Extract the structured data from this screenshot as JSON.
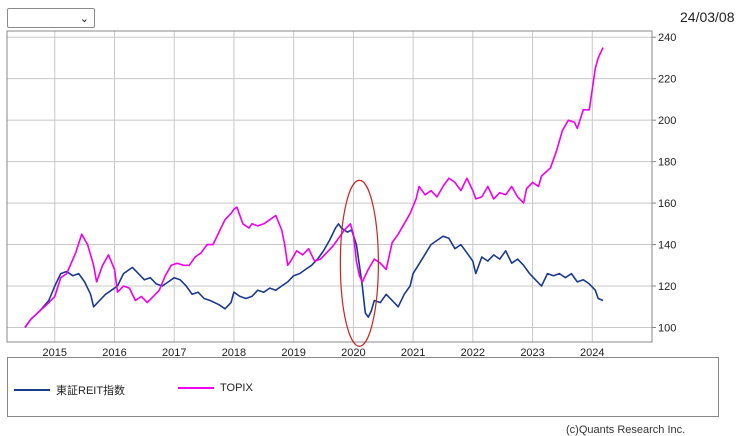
{
  "header": {
    "range_select_value": "",
    "date": "24/03/08"
  },
  "chart_data": {
    "type": "line",
    "x_ticks": [
      "2015",
      "2016",
      "2017",
      "2018",
      "2019",
      "2020",
      "2021",
      "2022",
      "2023",
      "2024"
    ],
    "y_ticks": [
      100,
      120,
      140,
      160,
      180,
      200,
      220,
      240
    ],
    "xlim": [
      2014.2,
      2025.0
    ],
    "ylim": [
      93,
      243
    ],
    "grid": true,
    "legend_position": "bottom",
    "annotation": "red ellipse around 2020 crash",
    "series": [
      {
        "name": "東証REIT指数",
        "color": "#1a3a8c",
        "points": [
          [
            2014.5,
            100
          ],
          [
            2014.6,
            104
          ],
          [
            2014.75,
            108
          ],
          [
            2014.9,
            113
          ],
          [
            2015.0,
            120
          ],
          [
            2015.1,
            126
          ],
          [
            2015.2,
            127
          ],
          [
            2015.3,
            125
          ],
          [
            2015.4,
            126
          ],
          [
            2015.5,
            122
          ],
          [
            2015.6,
            116
          ],
          [
            2015.65,
            110
          ],
          [
            2015.75,
            113
          ],
          [
            2015.85,
            116
          ],
          [
            2015.95,
            118
          ],
          [
            2016.05,
            120
          ],
          [
            2016.15,
            126
          ],
          [
            2016.3,
            129
          ],
          [
            2016.4,
            126
          ],
          [
            2016.5,
            123
          ],
          [
            2016.6,
            124
          ],
          [
            2016.7,
            121
          ],
          [
            2016.8,
            120
          ],
          [
            2016.9,
            122
          ],
          [
            2017.0,
            124
          ],
          [
            2017.1,
            123
          ],
          [
            2017.2,
            120
          ],
          [
            2017.3,
            116
          ],
          [
            2017.4,
            117
          ],
          [
            2017.5,
            114
          ],
          [
            2017.6,
            113
          ],
          [
            2017.75,
            111
          ],
          [
            2017.85,
            109
          ],
          [
            2017.95,
            112
          ],
          [
            2018.0,
            117
          ],
          [
            2018.1,
            115
          ],
          [
            2018.2,
            114
          ],
          [
            2018.3,
            115
          ],
          [
            2018.4,
            118
          ],
          [
            2018.5,
            117
          ],
          [
            2018.6,
            119
          ],
          [
            2018.7,
            118
          ],
          [
            2018.8,
            120
          ],
          [
            2018.9,
            122
          ],
          [
            2019.0,
            125
          ],
          [
            2019.1,
            126
          ],
          [
            2019.2,
            128
          ],
          [
            2019.3,
            130
          ],
          [
            2019.4,
            133
          ],
          [
            2019.5,
            137
          ],
          [
            2019.6,
            142
          ],
          [
            2019.7,
            148
          ],
          [
            2019.75,
            150
          ],
          [
            2019.8,
            148
          ],
          [
            2019.9,
            146
          ],
          [
            2019.97,
            147
          ],
          [
            2020.05,
            140
          ],
          [
            2020.1,
            130
          ],
          [
            2020.15,
            120
          ],
          [
            2020.2,
            107
          ],
          [
            2020.25,
            105
          ],
          [
            2020.3,
            108
          ],
          [
            2020.35,
            113
          ],
          [
            2020.45,
            112
          ],
          [
            2020.55,
            116
          ],
          [
            2020.65,
            113
          ],
          [
            2020.75,
            110
          ],
          [
            2020.85,
            116
          ],
          [
            2020.95,
            120
          ],
          [
            2021.0,
            126
          ],
          [
            2021.15,
            133
          ],
          [
            2021.3,
            140
          ],
          [
            2021.4,
            142
          ],
          [
            2021.5,
            144
          ],
          [
            2021.6,
            143
          ],
          [
            2021.7,
            138
          ],
          [
            2021.8,
            140
          ],
          [
            2021.9,
            136
          ],
          [
            2022.0,
            132
          ],
          [
            2022.05,
            126
          ],
          [
            2022.15,
            134
          ],
          [
            2022.25,
            132
          ],
          [
            2022.35,
            135
          ],
          [
            2022.45,
            133
          ],
          [
            2022.55,
            137
          ],
          [
            2022.65,
            131
          ],
          [
            2022.75,
            133
          ],
          [
            2022.85,
            130
          ],
          [
            2022.95,
            126
          ],
          [
            2023.05,
            123
          ],
          [
            2023.15,
            120
          ],
          [
            2023.25,
            126
          ],
          [
            2023.35,
            125
          ],
          [
            2023.45,
            126
          ],
          [
            2023.55,
            124
          ],
          [
            2023.65,
            126
          ],
          [
            2023.75,
            122
          ],
          [
            2023.85,
            123
          ],
          [
            2023.95,
            121
          ],
          [
            2024.05,
            118
          ],
          [
            2024.1,
            114
          ],
          [
            2024.18,
            113
          ]
        ]
      },
      {
        "name": "TOPIX",
        "color": "#ee00ee",
        "points": [
          [
            2014.5,
            100
          ],
          [
            2014.6,
            104
          ],
          [
            2014.75,
            108
          ],
          [
            2014.9,
            112
          ],
          [
            2015.0,
            115
          ],
          [
            2015.1,
            124
          ],
          [
            2015.2,
            126
          ],
          [
            2015.35,
            136
          ],
          [
            2015.45,
            145
          ],
          [
            2015.55,
            140
          ],
          [
            2015.65,
            130
          ],
          [
            2015.7,
            122
          ],
          [
            2015.8,
            130
          ],
          [
            2015.9,
            135
          ],
          [
            2016.0,
            128
          ],
          [
            2016.05,
            117
          ],
          [
            2016.15,
            120
          ],
          [
            2016.25,
            119
          ],
          [
            2016.35,
            113
          ],
          [
            2016.45,
            115
          ],
          [
            2016.55,
            112
          ],
          [
            2016.65,
            115
          ],
          [
            2016.75,
            118
          ],
          [
            2016.85,
            125
          ],
          [
            2016.95,
            130
          ],
          [
            2017.05,
            131
          ],
          [
            2017.15,
            130
          ],
          [
            2017.25,
            130
          ],
          [
            2017.35,
            134
          ],
          [
            2017.45,
            136
          ],
          [
            2017.55,
            140
          ],
          [
            2017.65,
            140
          ],
          [
            2017.75,
            146
          ],
          [
            2017.85,
            152
          ],
          [
            2017.95,
            155
          ],
          [
            2018.0,
            157
          ],
          [
            2018.05,
            158
          ],
          [
            2018.15,
            150
          ],
          [
            2018.25,
            148
          ],
          [
            2018.3,
            150
          ],
          [
            2018.4,
            149
          ],
          [
            2018.5,
            150
          ],
          [
            2018.6,
            152
          ],
          [
            2018.7,
            154
          ],
          [
            2018.8,
            147
          ],
          [
            2018.85,
            140
          ],
          [
            2018.9,
            130
          ],
          [
            2018.95,
            132
          ],
          [
            2019.05,
            137
          ],
          [
            2019.15,
            135
          ],
          [
            2019.25,
            138
          ],
          [
            2019.35,
            132
          ],
          [
            2019.45,
            133
          ],
          [
            2019.55,
            136
          ],
          [
            2019.65,
            139
          ],
          [
            2019.75,
            143
          ],
          [
            2019.85,
            147
          ],
          [
            2019.95,
            150
          ],
          [
            2020.0,
            145
          ],
          [
            2020.05,
            132
          ],
          [
            2020.1,
            125
          ],
          [
            2020.15,
            122
          ],
          [
            2020.25,
            128
          ],
          [
            2020.35,
            133
          ],
          [
            2020.45,
            131
          ],
          [
            2020.55,
            128
          ],
          [
            2020.65,
            141
          ],
          [
            2020.75,
            145
          ],
          [
            2020.85,
            150
          ],
          [
            2020.95,
            155
          ],
          [
            2021.05,
            162
          ],
          [
            2021.1,
            168
          ],
          [
            2021.2,
            164
          ],
          [
            2021.3,
            166
          ],
          [
            2021.4,
            163
          ],
          [
            2021.5,
            168
          ],
          [
            2021.6,
            172
          ],
          [
            2021.7,
            170
          ],
          [
            2021.8,
            166
          ],
          [
            2021.9,
            172
          ],
          [
            2022.0,
            166
          ],
          [
            2022.05,
            162
          ],
          [
            2022.15,
            163
          ],
          [
            2022.25,
            168
          ],
          [
            2022.35,
            162
          ],
          [
            2022.45,
            165
          ],
          [
            2022.55,
            164
          ],
          [
            2022.65,
            168
          ],
          [
            2022.75,
            163
          ],
          [
            2022.85,
            160
          ],
          [
            2022.9,
            167
          ],
          [
            2023.0,
            170
          ],
          [
            2023.1,
            168
          ],
          [
            2023.15,
            173
          ],
          [
            2023.3,
            177
          ],
          [
            2023.4,
            185
          ],
          [
            2023.5,
            195
          ],
          [
            2023.6,
            200
          ],
          [
            2023.7,
            199
          ],
          [
            2023.75,
            196
          ],
          [
            2023.85,
            205
          ],
          [
            2023.95,
            205
          ],
          [
            2024.0,
            215
          ],
          [
            2024.05,
            225
          ],
          [
            2024.1,
            230
          ],
          [
            2024.18,
            235
          ]
        ]
      }
    ]
  },
  "legend": {
    "reit_label": "東証REIT指数",
    "topix_label": "TOPIX"
  },
  "footer": {
    "copyright": "(c)Quants Research Inc."
  }
}
